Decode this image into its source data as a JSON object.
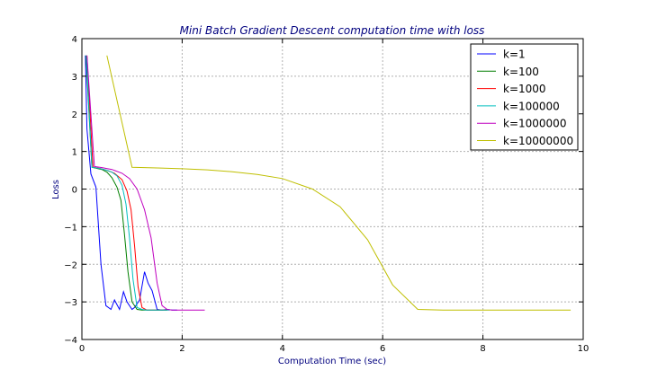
{
  "chart_data": {
    "type": "line",
    "title": "Mini Batch Gradient Descent computation time with loss",
    "xlabel": "Computation Time (sec)",
    "ylabel": "Loss",
    "xlim": [
      0,
      10
    ],
    "ylim": [
      -4,
      4
    ],
    "xticks": [
      0,
      2,
      4,
      6,
      8,
      10
    ],
    "yticks": [
      -4,
      -3,
      -2,
      -1,
      0,
      1,
      2,
      3,
      4
    ],
    "grid": true,
    "legend_position": "top-right",
    "series": [
      {
        "name": "k=1",
        "color": "#0000ff",
        "x": [
          0.07,
          0.1,
          0.18,
          0.28,
          0.38,
          0.48,
          0.58,
          0.65,
          0.75,
          0.83,
          0.9,
          1.0,
          1.05,
          1.15,
          1.25,
          1.32,
          1.4,
          1.5,
          1.6,
          1.7,
          1.8,
          1.9
        ],
        "y": [
          3.55,
          1.6,
          0.4,
          0.05,
          -2.0,
          -3.1,
          -3.2,
          -2.95,
          -3.2,
          -2.73,
          -3.0,
          -3.2,
          -3.15,
          -2.95,
          -2.2,
          -2.5,
          -2.7,
          -3.2,
          -3.22,
          -3.2,
          -3.22,
          -3.22
        ]
      },
      {
        "name": "k=100",
        "color": "#007f00",
        "x": [
          0.08,
          0.2,
          0.3,
          0.4,
          0.5,
          0.6,
          0.7,
          0.78,
          0.85,
          0.92,
          1.0,
          1.1,
          1.2,
          1.3,
          1.5,
          1.7
        ],
        "y": [
          3.55,
          0.58,
          0.55,
          0.52,
          0.45,
          0.3,
          0.05,
          -0.3,
          -1.2,
          -2.2,
          -3.0,
          -3.2,
          -3.22,
          -3.22,
          -3.22,
          -3.22
        ]
      },
      {
        "name": "k=1000",
        "color": "#ff0000",
        "x": [
          0.1,
          0.22,
          0.35,
          0.5,
          0.65,
          0.8,
          0.9,
          0.98,
          1.05,
          1.12,
          1.2,
          1.3,
          1.5,
          1.7
        ],
        "y": [
          3.55,
          0.58,
          0.55,
          0.5,
          0.42,
          0.25,
          -0.05,
          -0.55,
          -1.5,
          -2.6,
          -3.15,
          -3.22,
          -3.22,
          -3.22
        ]
      },
      {
        "name": "k=100000",
        "color": "#00bfbf",
        "x": [
          0.09,
          0.2,
          0.35,
          0.5,
          0.6,
          0.7,
          0.8,
          0.88,
          0.95,
          1.02,
          1.1,
          1.2,
          1.3,
          1.5,
          1.75
        ],
        "y": [
          3.55,
          0.58,
          0.55,
          0.5,
          0.45,
          0.35,
          0.1,
          -0.4,
          -1.3,
          -2.4,
          -3.15,
          -3.2,
          -3.22,
          -3.22,
          -3.22
        ]
      },
      {
        "name": "k=1000000",
        "color": "#bf00bf",
        "x": [
          0.1,
          0.25,
          0.4,
          0.6,
          0.8,
          0.95,
          1.1,
          1.25,
          1.38,
          1.5,
          1.6,
          1.7,
          1.8,
          2.0,
          2.2,
          2.45
        ],
        "y": [
          3.55,
          0.6,
          0.57,
          0.52,
          0.42,
          0.28,
          0.0,
          -0.55,
          -1.3,
          -2.5,
          -3.1,
          -3.2,
          -3.22,
          -3.22,
          -3.22,
          -3.22
        ]
      },
      {
        "name": "k=10000000",
        "color": "#bfbf00",
        "x": [
          0.5,
          1.0,
          1.5,
          2.0,
          2.5,
          3.0,
          3.5,
          4.0,
          4.6,
          5.15,
          5.7,
          6.2,
          6.7,
          7.2,
          7.7,
          8.2,
          8.7,
          9.2,
          9.75
        ],
        "y": [
          3.55,
          0.58,
          0.56,
          0.54,
          0.51,
          0.46,
          0.39,
          0.28,
          0.0,
          -0.47,
          -1.35,
          -2.55,
          -3.2,
          -3.22,
          -3.22,
          -3.22,
          -3.22,
          -3.22,
          -3.22
        ]
      }
    ]
  }
}
